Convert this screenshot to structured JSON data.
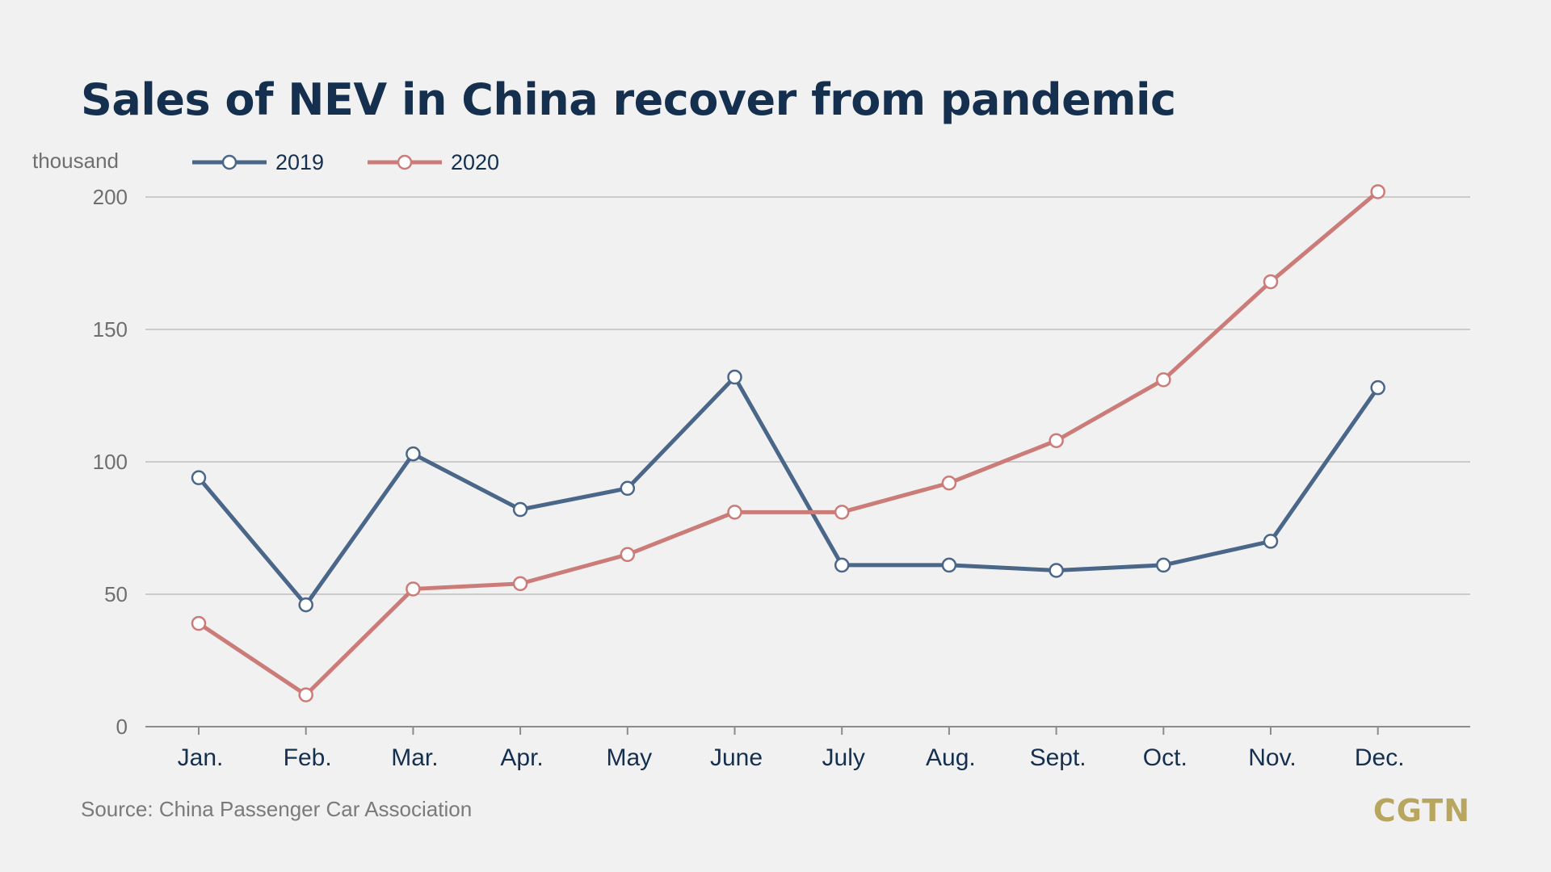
{
  "chart_data": {
    "type": "line",
    "title": "Sales of NEV in China recover from pandemic",
    "ylabel": "thousand",
    "xlabel": "",
    "categories": [
      "Jan.",
      "Feb.",
      "Mar.",
      "Apr.",
      "May",
      "June",
      "July",
      "Aug.",
      "Sept.",
      "Oct.",
      "Nov.",
      "Dec."
    ],
    "ylim": [
      0,
      200
    ],
    "yticks": [
      0,
      50,
      100,
      150,
      200
    ],
    "grid": true,
    "legend_position": "top-left",
    "series": [
      {
        "name": "2019",
        "color": "#4a6688",
        "values": [
          94,
          46,
          103,
          82,
          90,
          132,
          61,
          61,
          59,
          61,
          70,
          128
        ]
      },
      {
        "name": "2020",
        "color": "#cc7c78",
        "values": [
          39,
          12,
          52,
          54,
          65,
          81,
          81,
          92,
          108,
          131,
          168,
          202
        ]
      }
    ]
  },
  "source": "Source: China Passenger Car Association",
  "brand": "CGTN"
}
